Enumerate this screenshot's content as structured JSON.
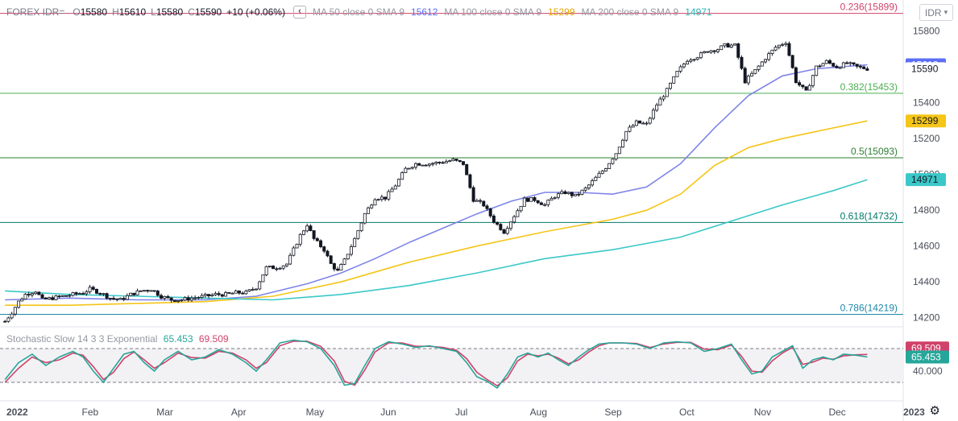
{
  "header": {
    "symbol": "FOREX IDR=",
    "o_label": "O",
    "o": "15580",
    "h_label": "H",
    "h": "15610",
    "l_label": "L",
    "l": "15580",
    "c_label": "C",
    "c": "15590",
    "change": "+10 (+0.06%)",
    "collapse_icon": "chevron-left-icon",
    "ma50": {
      "label": "MA 50 close 0 SMA 9",
      "value": "15612",
      "color": "#7e84e8"
    },
    "ma100": {
      "label": "MA 100 close 0 SMA 9",
      "value": "15299",
      "color": "#f5c518"
    },
    "ma200": {
      "label": "MA 200 close 0 SMA 9",
      "value": "14971",
      "color": "#3cc8c8"
    }
  },
  "currency_button": {
    "label": "IDR",
    "icon": "chevron-down-icon"
  },
  "stochastic": {
    "label": "Stochastic Slow 14 3 3 Exponential",
    "k_value": "65.453",
    "d_value": "69.509",
    "k_color": "#26a69a",
    "d_color": "#d0426a"
  },
  "settings_icon": "gear-icon",
  "chart_data": {
    "type": "candlestick",
    "price_axis": {
      "ticks": [
        "15800",
        "15600",
        "15400",
        "15200",
        "15000",
        "14800",
        "14600",
        "14400",
        "14200"
      ],
      "range": [
        14100,
        15920
      ]
    },
    "time_axis": {
      "ticks": [
        "2022",
        "Feb",
        "Mar",
        "Apr",
        "May",
        "Jun",
        "Jul",
        "Aug",
        "Sep",
        "Oct",
        "Nov",
        "Dec",
        "2023"
      ]
    },
    "price_labels": [
      {
        "value": "15612",
        "color": "#5b6ef5",
        "text_color": "#ffffff"
      },
      {
        "value": "15590",
        "color": "#ffffff",
        "text_color": "#131722"
      },
      {
        "value": "15299",
        "color": "#f5c518",
        "text_color": "#131722"
      },
      {
        "value": "14971",
        "color": "#3cc8c8",
        "text_color": "#131722"
      }
    ],
    "fibonacci": [
      {
        "label": "0.236(15899)",
        "level": 15899,
        "color": "#d0426a"
      },
      {
        "label": "0.382(15453)",
        "level": 15453,
        "color": "#4caf50"
      },
      {
        "label": "0.5(15093)",
        "level": 15093,
        "color": "#2e7d32"
      },
      {
        "label": "0.618(14732)",
        "level": 14732,
        "color": "#00796b"
      },
      {
        "label": "0.786(14219)",
        "level": 14219,
        "color": "#1e88a8"
      }
    ],
    "close_series": [
      [
        1,
        14180
      ],
      [
        3,
        14230
      ],
      [
        5,
        14290
      ],
      [
        7,
        14330
      ],
      [
        10,
        14350
      ],
      [
        12,
        14300
      ],
      [
        15,
        14310
      ],
      [
        18,
        14320
      ],
      [
        21,
        14330
      ],
      [
        24,
        14340
      ],
      [
        26,
        14360
      ],
      [
        29,
        14340
      ],
      [
        32,
        14310
      ],
      [
        35,
        14300
      ],
      [
        38,
        14330
      ],
      [
        41,
        14350
      ],
      [
        44,
        14360
      ],
      [
        47,
        14320
      ],
      [
        50,
        14300
      ],
      [
        53,
        14300
      ],
      [
        56,
        14310
      ],
      [
        60,
        14320
      ],
      [
        63,
        14330
      ],
      [
        66,
        14330
      ],
      [
        69,
        14340
      ],
      [
        72,
        14340
      ],
      [
        75,
        14370
      ],
      [
        78,
        14480
      ],
      [
        81,
        14480
      ],
      [
        84,
        14500
      ],
      [
        86,
        14580
      ],
      [
        88,
        14660
      ],
      [
        90,
        14720
      ],
      [
        92,
        14640
      ],
      [
        95,
        14580
      ],
      [
        97,
        14500
      ],
      [
        99,
        14460
      ],
      [
        101,
        14520
      ],
      [
        104,
        14640
      ],
      [
        107,
        14780
      ],
      [
        110,
        14870
      ],
      [
        113,
        14870
      ],
      [
        116,
        14940
      ],
      [
        119,
        15030
      ],
      [
        122,
        15060
      ],
      [
        126,
        15060
      ],
      [
        130,
        15070
      ],
      [
        133,
        15080
      ],
      [
        136,
        15060
      ],
      [
        139,
        14860
      ],
      [
        142,
        14830
      ],
      [
        145,
        14740
      ],
      [
        148,
        14680
      ],
      [
        151,
        14770
      ],
      [
        154,
        14860
      ],
      [
        157,
        14860
      ],
      [
        160,
        14830
      ],
      [
        163,
        14880
      ],
      [
        166,
        14900
      ],
      [
        169,
        14880
      ],
      [
        172,
        14920
      ],
      [
        175,
        14980
      ],
      [
        178,
        15040
      ],
      [
        181,
        15120
      ],
      [
        184,
        15240
      ],
      [
        187,
        15290
      ],
      [
        190,
        15280
      ],
      [
        193,
        15390
      ],
      [
        196,
        15470
      ],
      [
        199,
        15570
      ],
      [
        202,
        15640
      ],
      [
        205,
        15660
      ],
      [
        208,
        15690
      ],
      [
        211,
        15700
      ],
      [
        213,
        15720
      ],
      [
        216,
        15720
      ],
      [
        219,
        15520
      ],
      [
        222,
        15580
      ],
      [
        225,
        15650
      ],
      [
        228,
        15710
      ],
      [
        231,
        15740
      ],
      [
        234,
        15520
      ],
      [
        237,
        15460
      ],
      [
        240,
        15600
      ],
      [
        243,
        15630
      ],
      [
        246,
        15600
      ],
      [
        249,
        15620
      ],
      [
        252,
        15600
      ],
      [
        255,
        15590
      ]
    ],
    "moving_averages": [
      {
        "name": "MA 50",
        "color": "#7e84e8",
        "points": [
          [
            1,
            14300
          ],
          [
            20,
            14310
          ],
          [
            40,
            14300
          ],
          [
            60,
            14300
          ],
          [
            75,
            14320
          ],
          [
            90,
            14390
          ],
          [
            100,
            14450
          ],
          [
            110,
            14530
          ],
          [
            120,
            14620
          ],
          [
            130,
            14700
          ],
          [
            140,
            14780
          ],
          [
            150,
            14850
          ],
          [
            160,
            14900
          ],
          [
            170,
            14900
          ],
          [
            180,
            14890
          ],
          [
            190,
            14930
          ],
          [
            200,
            15060
          ],
          [
            210,
            15260
          ],
          [
            220,
            15440
          ],
          [
            230,
            15550
          ],
          [
            240,
            15590
          ],
          [
            255,
            15612
          ]
        ]
      },
      {
        "name": "MA 100",
        "color": "#f5c518",
        "points": [
          [
            1,
            14270
          ],
          [
            20,
            14270
          ],
          [
            40,
            14280
          ],
          [
            60,
            14290
          ],
          [
            80,
            14320
          ],
          [
            100,
            14400
          ],
          [
            120,
            14510
          ],
          [
            140,
            14600
          ],
          [
            160,
            14680
          ],
          [
            180,
            14750
          ],
          [
            190,
            14800
          ],
          [
            200,
            14890
          ],
          [
            210,
            15050
          ],
          [
            220,
            15150
          ],
          [
            230,
            15200
          ],
          [
            240,
            15240
          ],
          [
            255,
            15299
          ]
        ]
      },
      {
        "name": "MA 200",
        "color": "#3cc8c8",
        "points": [
          [
            1,
            14350
          ],
          [
            20,
            14330
          ],
          [
            40,
            14320
          ],
          [
            60,
            14310
          ],
          [
            80,
            14300
          ],
          [
            100,
            14330
          ],
          [
            120,
            14380
          ],
          [
            140,
            14450
          ],
          [
            160,
            14530
          ],
          [
            180,
            14580
          ],
          [
            200,
            14650
          ],
          [
            215,
            14740
          ],
          [
            230,
            14830
          ],
          [
            245,
            14910
          ],
          [
            255,
            14971
          ]
        ]
      }
    ],
    "stochastic_axis": {
      "ticks": [
        "40.000"
      ],
      "upper_band": 80,
      "lower_band": 20
    },
    "stochastic_k": [
      [
        1,
        25
      ],
      [
        5,
        55
      ],
      [
        9,
        70
      ],
      [
        13,
        50
      ],
      [
        17,
        65
      ],
      [
        21,
        75
      ],
      [
        24,
        65
      ],
      [
        27,
        40
      ],
      [
        30,
        20
      ],
      [
        33,
        45
      ],
      [
        36,
        70
      ],
      [
        39,
        75
      ],
      [
        42,
        55
      ],
      [
        45,
        40
      ],
      [
        48,
        60
      ],
      [
        52,
        75
      ],
      [
        56,
        60
      ],
      [
        60,
        65
      ],
      [
        64,
        78
      ],
      [
        68,
        70
      ],
      [
        72,
        55
      ],
      [
        75,
        40
      ],
      [
        78,
        60
      ],
      [
        82,
        90
      ],
      [
        86,
        95
      ],
      [
        90,
        92
      ],
      [
        94,
        80
      ],
      [
        98,
        50
      ],
      [
        101,
        15
      ],
      [
        104,
        18
      ],
      [
        107,
        50
      ],
      [
        110,
        80
      ],
      [
        114,
        92
      ],
      [
        118,
        88
      ],
      [
        122,
        82
      ],
      [
        126,
        85
      ],
      [
        130,
        80
      ],
      [
        134,
        75
      ],
      [
        137,
        55
      ],
      [
        140,
        30
      ],
      [
        143,
        22
      ],
      [
        146,
        10
      ],
      [
        149,
        35
      ],
      [
        152,
        65
      ],
      [
        155,
        72
      ],
      [
        158,
        65
      ],
      [
        161,
        72
      ],
      [
        164,
        60
      ],
      [
        167,
        50
      ],
      [
        170,
        65
      ],
      [
        173,
        78
      ],
      [
        176,
        88
      ],
      [
        179,
        90
      ],
      [
        183,
        90
      ],
      [
        187,
        88
      ],
      [
        191,
        80
      ],
      [
        195,
        90
      ],
      [
        199,
        92
      ],
      [
        203,
        90
      ],
      [
        207,
        75
      ],
      [
        211,
        80
      ],
      [
        215,
        88
      ],
      [
        218,
        60
      ],
      [
        221,
        35
      ],
      [
        224,
        40
      ],
      [
        227,
        65
      ],
      [
        230,
        75
      ],
      [
        233,
        85
      ],
      [
        236,
        45
      ],
      [
        239,
        60
      ],
      [
        242,
        65
      ],
      [
        245,
        60
      ],
      [
        248,
        70
      ],
      [
        252,
        68
      ],
      [
        255,
        65
      ]
    ],
    "stochastic_d": [
      [
        1,
        20
      ],
      [
        5,
        45
      ],
      [
        9,
        65
      ],
      [
        13,
        55
      ],
      [
        17,
        60
      ],
      [
        21,
        72
      ],
      [
        24,
        68
      ],
      [
        27,
        48
      ],
      [
        30,
        25
      ],
      [
        33,
        38
      ],
      [
        36,
        62
      ],
      [
        39,
        74
      ],
      [
        42,
        60
      ],
      [
        45,
        45
      ],
      [
        48,
        55
      ],
      [
        52,
        72
      ],
      [
        56,
        64
      ],
      [
        60,
        63
      ],
      [
        64,
        75
      ],
      [
        68,
        72
      ],
      [
        72,
        60
      ],
      [
        75,
        45
      ],
      [
        78,
        55
      ],
      [
        82,
        85
      ],
      [
        86,
        93
      ],
      [
        90,
        93
      ],
      [
        94,
        84
      ],
      [
        98,
        58
      ],
      [
        101,
        22
      ],
      [
        104,
        15
      ],
      [
        107,
        42
      ],
      [
        110,
        74
      ],
      [
        114,
        90
      ],
      [
        118,
        90
      ],
      [
        122,
        84
      ],
      [
        126,
        84
      ],
      [
        130,
        82
      ],
      [
        134,
        77
      ],
      [
        137,
        62
      ],
      [
        140,
        38
      ],
      [
        143,
        25
      ],
      [
        146,
        14
      ],
      [
        149,
        28
      ],
      [
        152,
        58
      ],
      [
        155,
        70
      ],
      [
        158,
        67
      ],
      [
        161,
        70
      ],
      [
        164,
        63
      ],
      [
        167,
        53
      ],
      [
        170,
        60
      ],
      [
        173,
        74
      ],
      [
        176,
        85
      ],
      [
        179,
        90
      ],
      [
        183,
        90
      ],
      [
        187,
        89
      ],
      [
        191,
        82
      ],
      [
        195,
        88
      ],
      [
        199,
        91
      ],
      [
        203,
        91
      ],
      [
        207,
        79
      ],
      [
        211,
        78
      ],
      [
        215,
        86
      ],
      [
        218,
        66
      ],
      [
        221,
        40
      ],
      [
        224,
        38
      ],
      [
        227,
        58
      ],
      [
        230,
        72
      ],
      [
        233,
        82
      ],
      [
        236,
        52
      ],
      [
        239,
        56
      ],
      [
        242,
        63
      ],
      [
        245,
        61
      ],
      [
        248,
        67
      ],
      [
        252,
        69
      ],
      [
        255,
        69.509
      ]
    ]
  }
}
